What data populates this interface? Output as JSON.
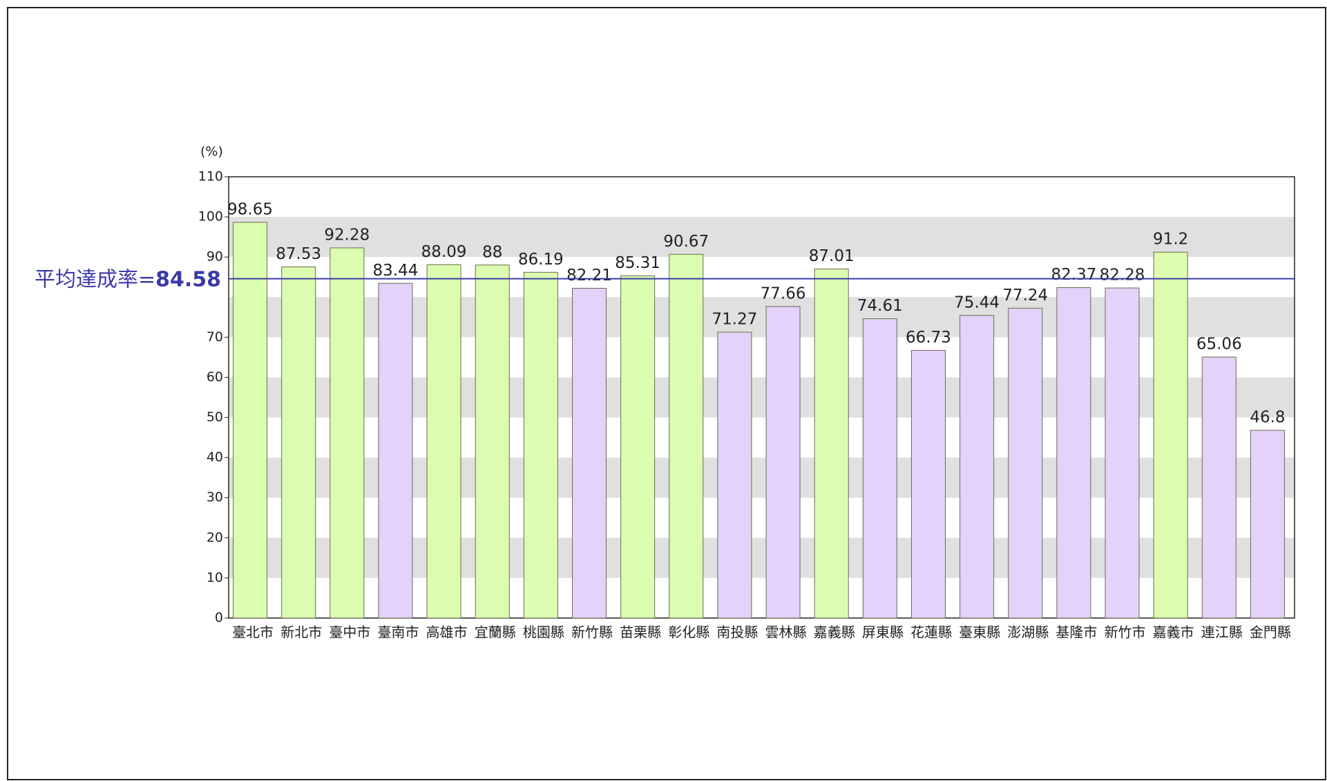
{
  "chart_data": {
    "type": "bar",
    "y_axis_label": "(%)",
    "categories": [
      "臺北市",
      "新北市",
      "臺中市",
      "臺南市",
      "高雄市",
      "宜蘭縣",
      "桃園縣",
      "新竹縣",
      "苗栗縣",
      "彰化縣",
      "南投縣",
      "雲林縣",
      "嘉義縣",
      "屏東縣",
      "花蓮縣",
      "臺東縣",
      "澎湖縣",
      "基隆市",
      "新竹市",
      "嘉義市",
      "連江縣",
      "金門縣"
    ],
    "values": [
      98.65,
      87.53,
      92.28,
      83.44,
      88.09,
      88,
      86.19,
      82.21,
      85.31,
      90.67,
      71.27,
      77.66,
      87.01,
      74.61,
      66.73,
      75.44,
      77.24,
      82.37,
      82.28,
      91.2,
      65.06,
      46.8
    ],
    "colors": [
      "#dcfdb0",
      "#dcfdb0",
      "#dcfdb0",
      "#e4d2fb",
      "#dcfdb0",
      "#dcfdb0",
      "#dcfdb0",
      "#e4d2fb",
      "#dcfdb0",
      "#dcfdb0",
      "#e4d2fb",
      "#e4d2fb",
      "#dcfdb0",
      "#e4d2fb",
      "#e4d2fb",
      "#e4d2fb",
      "#e4d2fb",
      "#e4d2fb",
      "#e4d2fb",
      "#dcfdb0",
      "#e4d2fb",
      "#e4d2fb"
    ],
    "ylim": [
      0,
      110
    ],
    "yticks": [
      0,
      10,
      20,
      30,
      40,
      50,
      60,
      70,
      90,
      100,
      110
    ],
    "grid": true,
    "average": {
      "label": "平均達成率=",
      "value": 84.58,
      "color": "#3a3aa8"
    }
  }
}
